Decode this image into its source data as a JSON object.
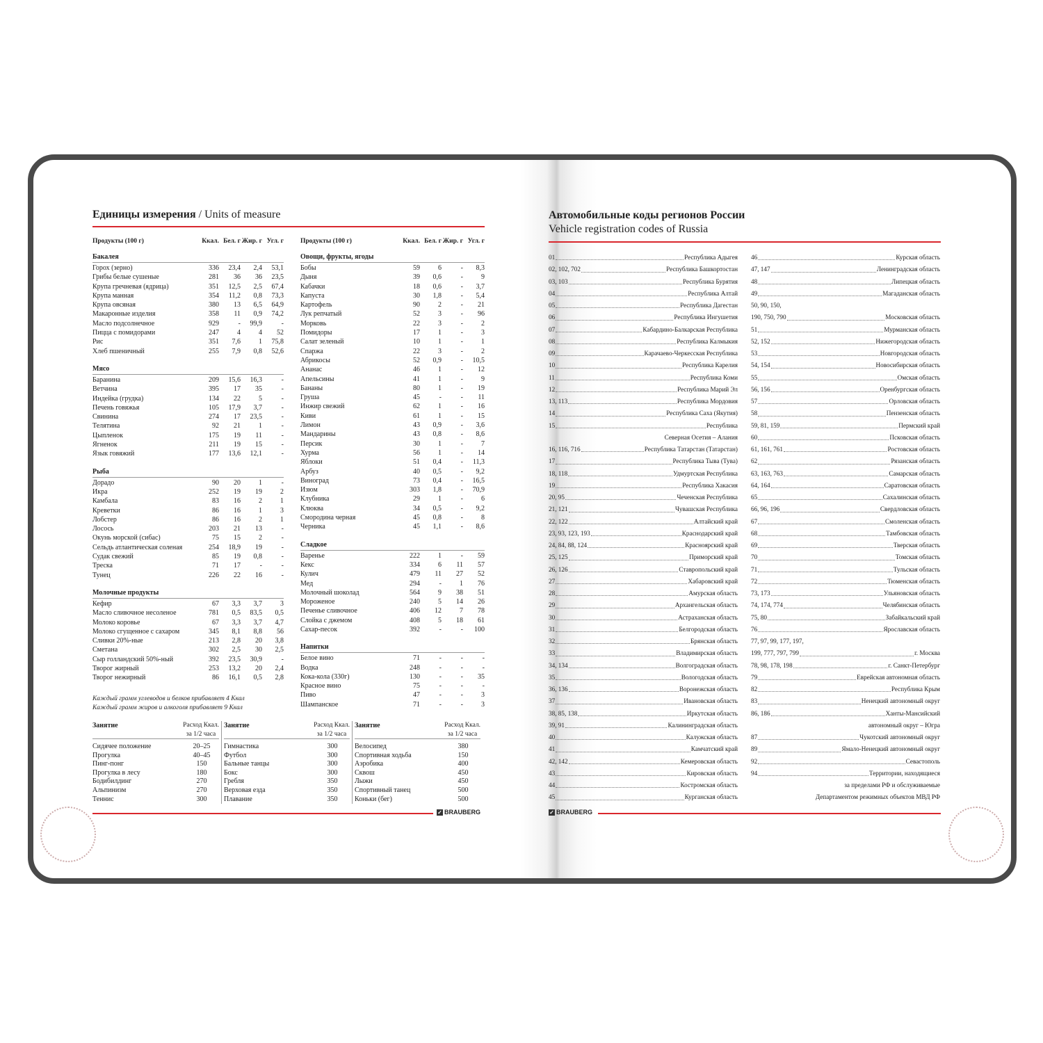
{
  "left": {
    "title_ru": "Единицы измерения",
    "title_sep": " / ",
    "title_en": "Units of measure",
    "headers": [
      "Продукты (100 г)",
      "Ккал.",
      "Бел. г",
      "Жир. г",
      "Угл. г"
    ],
    "col1": [
      {
        "name": "Бакалея",
        "rows": [
          [
            "Горох (зерно)",
            "336",
            "23,4",
            "2,4",
            "53,1"
          ],
          [
            "Грибы белые сушеные",
            "281",
            "36",
            "36",
            "23,5"
          ],
          [
            "Крупа гречневая (ядрица)",
            "351",
            "12,5",
            "2,5",
            "67,4"
          ],
          [
            "Крупа манная",
            "354",
            "11,2",
            "0,8",
            "73,3"
          ],
          [
            "Крупа овсяная",
            "380",
            "13",
            "6,5",
            "64,9"
          ],
          [
            "Макаронные изделия",
            "358",
            "11",
            "0,9",
            "74,2"
          ],
          [
            "Масло подсолнечное",
            "929",
            "-",
            "99,9",
            "-"
          ],
          [
            "Пицца с помидорами",
            "247",
            "4",
            "4",
            "52"
          ],
          [
            "Рис",
            "351",
            "7,6",
            "1",
            "75,8"
          ],
          [
            "Хлеб пшеничный",
            "255",
            "7,9",
            "0,8",
            "52,6"
          ]
        ]
      },
      {
        "name": "Мясо",
        "rows": [
          [
            "Баранина",
            "209",
            "15,6",
            "16,3",
            "-"
          ],
          [
            "Ветчина",
            "395",
            "17",
            "35",
            "-"
          ],
          [
            "Индейка (грудка)",
            "134",
            "22",
            "5",
            "-"
          ],
          [
            "Печень говяжья",
            "105",
            "17,9",
            "3,7",
            "-"
          ],
          [
            "Свинина",
            "274",
            "17",
            "23,5",
            "-"
          ],
          [
            "Телятина",
            "92",
            "21",
            "1",
            "-"
          ],
          [
            "Цыпленок",
            "175",
            "19",
            "11",
            "-"
          ],
          [
            "Ягненок",
            "211",
            "19",
            "15",
            "-"
          ],
          [
            "Язык говяжий",
            "177",
            "13,6",
            "12,1",
            "-"
          ]
        ]
      },
      {
        "name": "Рыба",
        "rows": [
          [
            "Дорадо",
            "90",
            "20",
            "1",
            "-"
          ],
          [
            "Икра",
            "252",
            "19",
            "19",
            "2"
          ],
          [
            "Камбала",
            "83",
            "16",
            "2",
            "1"
          ],
          [
            "Креветки",
            "86",
            "16",
            "1",
            "3"
          ],
          [
            "Лобстер",
            "86",
            "16",
            "2",
            "1"
          ],
          [
            "Лосось",
            "203",
            "21",
            "13",
            "-"
          ],
          [
            "Окунь морской (сибас)",
            "75",
            "15",
            "2",
            "-"
          ],
          [
            "Сельдь атлантическая соленая",
            "254",
            "18,9",
            "19",
            "-"
          ],
          [
            "Судак свежий",
            "85",
            "19",
            "0,8",
            "-"
          ],
          [
            "Треска",
            "71",
            "17",
            "-",
            "-"
          ],
          [
            "Тунец",
            "226",
            "22",
            "16",
            "-"
          ]
        ]
      },
      {
        "name": "Молочные продукты",
        "rows": [
          [
            "Кефир",
            "67",
            "3,3",
            "3,7",
            "3"
          ],
          [
            "Масло сливочное несоленое",
            "781",
            "0,5",
            "83,5",
            "0,5"
          ],
          [
            "Молоко коровье",
            "67",
            "3,3",
            "3,7",
            "4,7"
          ],
          [
            "Молоко сгущенное с сахаром",
            "345",
            "8,1",
            "8,8",
            "56"
          ],
          [
            "Сливки 20%-ные",
            "213",
            "2,8",
            "20",
            "3,8"
          ],
          [
            "Сметана",
            "302",
            "2,5",
            "30",
            "2,5"
          ],
          [
            "Сыр голландский 50%-ный",
            "392",
            "23,5",
            "30,9",
            "-"
          ],
          [
            "Творог жирный",
            "253",
            "13,2",
            "20",
            "2,4"
          ],
          [
            "Творог нежирный",
            "86",
            "16,1",
            "0,5",
            "2,8"
          ]
        ]
      }
    ],
    "col2": [
      {
        "name": "Овощи, фрукты, ягоды",
        "rows": [
          [
            "Бобы",
            "59",
            "6",
            "-",
            "8,3"
          ],
          [
            "Дыня",
            "39",
            "0,6",
            "-",
            "9"
          ],
          [
            "Кабачки",
            "18",
            "0,6",
            "-",
            "3,7"
          ],
          [
            "Капуста",
            "30",
            "1,8",
            "-",
            "5,4"
          ],
          [
            "Картофель",
            "90",
            "2",
            "-",
            "21"
          ],
          [
            "Лук репчатый",
            "52",
            "3",
            "-",
            "96"
          ],
          [
            "Морковь",
            "22",
            "3",
            "-",
            "2"
          ],
          [
            "Помидоры",
            "17",
            "1",
            "-",
            "3"
          ],
          [
            "Салат зеленый",
            "10",
            "1",
            "-",
            "1"
          ],
          [
            "Спаржа",
            "22",
            "3",
            "-",
            "2"
          ],
          [
            "Абрикосы",
            "52",
            "0,9",
            "-",
            "10,5"
          ],
          [
            "Ананас",
            "46",
            "1",
            "-",
            "12"
          ],
          [
            "Апельсины",
            "41",
            "1",
            "-",
            "9"
          ],
          [
            "Бананы",
            "80",
            "1",
            "-",
            "19"
          ],
          [
            "Груша",
            "45",
            "-",
            "-",
            "11"
          ],
          [
            "Инжир свежий",
            "62",
            "1",
            "-",
            "16"
          ],
          [
            "Киви",
            "61",
            "1",
            "-",
            "15"
          ],
          [
            "Лимон",
            "43",
            "0,9",
            "-",
            "3,6"
          ],
          [
            "Мандарины",
            "43",
            "0,8",
            "-",
            "8,6"
          ],
          [
            "Персик",
            "30",
            "1",
            "-",
            "7"
          ],
          [
            "Хурма",
            "56",
            "1",
            "-",
            "14"
          ],
          [
            "Яблоки",
            "51",
            "0,4",
            "-",
            "11,3"
          ],
          [
            "Арбуз",
            "40",
            "0,5",
            "-",
            "9,2"
          ],
          [
            "Виноград",
            "73",
            "0,4",
            "-",
            "16,5"
          ],
          [
            "Изюм",
            "303",
            "1,8",
            "-",
            "70,9"
          ],
          [
            "Клубника",
            "29",
            "1",
            "-",
            "6"
          ],
          [
            "Клюква",
            "34",
            "0,5",
            "-",
            "9,2"
          ],
          [
            "Смородина черная",
            "45",
            "0,8",
            "-",
            "8"
          ],
          [
            "Черника",
            "45",
            "1,1",
            "-",
            "8,6"
          ]
        ]
      },
      {
        "name": "Сладкое",
        "rows": [
          [
            "Варенье",
            "222",
            "1",
            "-",
            "59"
          ],
          [
            "Кекс",
            "334",
            "6",
            "11",
            "57"
          ],
          [
            "Кулич",
            "479",
            "11",
            "27",
            "52"
          ],
          [
            "Мед",
            "294",
            "-",
            "1",
            "76"
          ],
          [
            "Молочный шоколад",
            "564",
            "9",
            "38",
            "51"
          ],
          [
            "Мороженое",
            "240",
            "5",
            "14",
            "26"
          ],
          [
            "Печенье сливочное",
            "406",
            "12",
            "7",
            "78"
          ],
          [
            "Слойка с джемом",
            "408",
            "5",
            "18",
            "61"
          ],
          [
            "Сахар-песок",
            "392",
            "-",
            "-",
            "100"
          ]
        ]
      },
      {
        "name": "Напитки",
        "rows": [
          [
            "Белое вино",
            "71",
            "-",
            "-",
            "-"
          ],
          [
            "Водка",
            "248",
            "-",
            "-",
            "-"
          ],
          [
            "Кока-кола (330г)",
            "130",
            "-",
            "-",
            "35"
          ],
          [
            "Красное вино",
            "75",
            "-",
            "-",
            "-"
          ],
          [
            "Пиво",
            "47",
            "-",
            "-",
            "3"
          ],
          [
            "Шампанское",
            "71",
            "-",
            "-",
            "3"
          ]
        ]
      }
    ],
    "notes": [
      "Каждый грамм углеводов и белков прибавляет 4 Ккал",
      "Каждый грамм жиров и алкоголя прибавляет 9 Ккал"
    ],
    "activity_header": {
      "name": "Занятие",
      "kcal": "Расход Ккал.",
      "per": "за 1/2 часа"
    },
    "activities": [
      [
        [
          "Сидячее положение",
          "20–25"
        ],
        [
          "Прогулка",
          "40–45"
        ],
        [
          "Пинг-понг",
          "150"
        ],
        [
          "Прогулка в лесу",
          "180"
        ],
        [
          "Бодибилдинг",
          "270"
        ],
        [
          "Альпинизм",
          "270"
        ],
        [
          "Теннис",
          "300"
        ]
      ],
      [
        [
          "Гимнастика",
          "300"
        ],
        [
          "Футбол",
          "300"
        ],
        [
          "Бальные танцы",
          "300"
        ],
        [
          "Бокс",
          "300"
        ],
        [
          "Гребля",
          "350"
        ],
        [
          "Верховая езда",
          "350"
        ],
        [
          "Плавание",
          "350"
        ]
      ],
      [
        [
          "Велосипед",
          "380"
        ],
        [
          "Спортивная ходьба",
          "150"
        ],
        [
          "Аэробика",
          "400"
        ],
        [
          "Сквош",
          "450"
        ],
        [
          "Лыжи",
          "450"
        ],
        [
          "Спортивный танец",
          "500"
        ],
        [
          "Коньки (бег)",
          "500"
        ]
      ]
    ],
    "brand": "BRAUBERG"
  },
  "right": {
    "title_ru": "Автомобильные коды регионов России",
    "title_en": "Vehicle registration codes of Russia",
    "col1": [
      [
        "01",
        "Республика Адыгея"
      ],
      [
        "02, 102, 702",
        "Республика Башкортостан"
      ],
      [
        "03, 103",
        "Республика Бурятия"
      ],
      [
        "04",
        "Республика Алтай"
      ],
      [
        "05",
        "Республика Дагестан"
      ],
      [
        "06",
        "Республика Ингушетия"
      ],
      [
        "07",
        "Кабардино-Балкарская Республика"
      ],
      [
        "08",
        "Республика Калмыкия"
      ],
      [
        "09",
        "Карачаево-Черкесская Республика"
      ],
      [
        "10",
        "Республика Карелия"
      ],
      [
        "11",
        "Республика Коми"
      ],
      [
        "12",
        "Республика Марий Эл"
      ],
      [
        "13, 113",
        "Республика Мордовия"
      ],
      [
        "14",
        "Республика Саха (Якутия)"
      ],
      [
        "15",
        "Республика"
      ],
      [
        "",
        "Северная Осетия – Алания"
      ],
      [
        "16, 116, 716",
        "Республика Татарстан (Татарстан)"
      ],
      [
        "17",
        "Республика Тыва (Тува)"
      ],
      [
        "18, 118",
        "Удмуртская Республика"
      ],
      [
        "19",
        "Республика Хакасия"
      ],
      [
        "20, 95",
        "Чеченская Республика"
      ],
      [
        "21, 121",
        "Чувашская Республика"
      ],
      [
        "22, 122",
        "Алтайский край"
      ],
      [
        "23, 93, 123, 193",
        "Краснодарский край"
      ],
      [
        "24, 84, 88, 124",
        "Красноярский край"
      ],
      [
        "25, 125",
        "Приморский край"
      ],
      [
        "26, 126",
        "Ставропольский край"
      ],
      [
        "27",
        "Хабаровский край"
      ],
      [
        "28",
        "Амурская область"
      ],
      [
        "29",
        "Архангельская область"
      ],
      [
        "30",
        "Астраханская область"
      ],
      [
        "31",
        "Белгородская область"
      ],
      [
        "32",
        "Брянская область"
      ],
      [
        "33",
        "Владимирская область"
      ],
      [
        "34, 134",
        "Волгоградская область"
      ],
      [
        "35",
        "Вологодская область"
      ],
      [
        "36, 136",
        "Воронежская область"
      ],
      [
        "37",
        "Ивановская область"
      ],
      [
        "38, 85, 138",
        "Иркутская область"
      ],
      [
        "39, 91",
        "Калининградская область"
      ],
      [
        "40",
        "Калужская область"
      ],
      [
        "41",
        "Камчатский край"
      ],
      [
        "42, 142",
        "Кемеровская область"
      ],
      [
        "43",
        "Кировская область"
      ],
      [
        "44",
        "Костромская область"
      ],
      [
        "45",
        "Курганская область"
      ]
    ],
    "col2": [
      [
        "46",
        "Курская область"
      ],
      [
        "47, 147",
        "Ленинградская область"
      ],
      [
        "48",
        "Липецкая область"
      ],
      [
        "49",
        "Магаданская область"
      ],
      [
        "50, 90, 150,",
        ""
      ],
      [
        "190, 750, 790",
        "Московская область"
      ],
      [
        "51",
        "Мурманская область"
      ],
      [
        "52, 152",
        "Нижегородская область"
      ],
      [
        "53",
        "Новгородская область"
      ],
      [
        "54, 154",
        "Новосибирская область"
      ],
      [
        "55",
        "Омская область"
      ],
      [
        "56, 156",
        "Оренбургская область"
      ],
      [
        "57",
        "Орловская область"
      ],
      [
        "58",
        "Пензенская область"
      ],
      [
        "59, 81, 159",
        "Пермский край"
      ],
      [
        "60",
        "Псковская область"
      ],
      [
        "61, 161, 761",
        "Ростовская область"
      ],
      [
        "62",
        "Рязанская область"
      ],
      [
        "63, 163, 763",
        "Самарская область"
      ],
      [
        "64, 164",
        "Саратовская область"
      ],
      [
        "65",
        "Сахалинская область"
      ],
      [
        "66, 96, 196",
        "Свердловская область"
      ],
      [
        "67",
        "Смоленская область"
      ],
      [
        "68",
        "Тамбовская область"
      ],
      [
        "69",
        "Тверская область"
      ],
      [
        "70",
        "Томская область"
      ],
      [
        "71",
        "Тульская область"
      ],
      [
        "72",
        "Тюменская область"
      ],
      [
        "73, 173",
        "Ульяновская область"
      ],
      [
        "74, 174, 774",
        "Челябинская область"
      ],
      [
        "75, 80",
        "Забайкальский край"
      ],
      [
        "76",
        "Ярославская область"
      ],
      [
        "77, 97, 99, 177, 197,",
        ""
      ],
      [
        "199, 777, 797, 799",
        "г. Москва"
      ],
      [
        "78, 98, 178, 198",
        "г. Санкт-Петербург"
      ],
      [
        "79",
        "Еврейская автономная область"
      ],
      [
        "82",
        "Республика Крым"
      ],
      [
        "83",
        "Ненецкий автономный округ"
      ],
      [
        "86, 186",
        "Ханты-Мансийский"
      ],
      [
        "",
        "автономный округ – Югра"
      ],
      [
        "87",
        "Чукотский автономный округ"
      ],
      [
        "89",
        "Ямало-Ненецкий автономный округ"
      ],
      [
        "92",
        "Севастополь"
      ],
      [
        "94",
        "Территории, находящиеся"
      ],
      [
        "",
        "за пределами РФ и обслуживаемые"
      ],
      [
        "",
        "Департаментом режимных объектов МВД РФ"
      ]
    ],
    "brand": "BRAUBERG"
  },
  "colors": {
    "accent": "#d9262c",
    "frame": "#4a4a4a"
  }
}
